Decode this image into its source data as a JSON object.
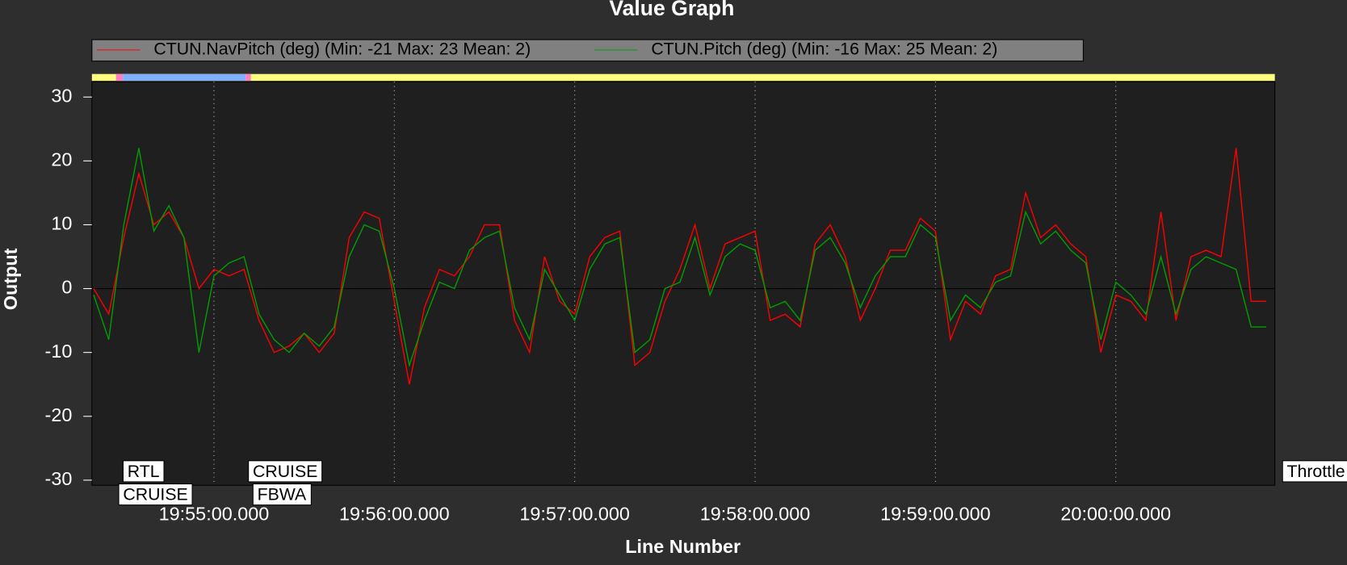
{
  "chart_data": {
    "type": "line",
    "title": "Value Graph",
    "x_label": "Line Number",
    "y_label": "Output",
    "x": [
      "19:54:20.000",
      "19:54:25.000",
      "19:54:30.000",
      "19:54:35.000",
      "19:54:40.000",
      "19:54:45.000",
      "19:54:50.000",
      "19:54:55.000",
      "19:55:00.000",
      "19:55:05.000",
      "19:55:10.000",
      "19:55:15.000",
      "19:55:20.000",
      "19:55:25.000",
      "19:55:30.000",
      "19:55:35.000",
      "19:55:40.000",
      "19:55:45.000",
      "19:55:50.000",
      "19:55:55.000",
      "19:56:00.000",
      "19:56:05.000",
      "19:56:10.000",
      "19:56:15.000",
      "19:56:20.000",
      "19:56:25.000",
      "19:56:30.000",
      "19:56:35.000",
      "19:56:40.000",
      "19:56:45.000",
      "19:56:50.000",
      "19:56:55.000",
      "19:57:00.000",
      "19:57:05.000",
      "19:57:10.000",
      "19:57:15.000",
      "19:57:20.000",
      "19:57:25.000",
      "19:57:30.000",
      "19:57:35.000",
      "19:57:40.000",
      "19:57:45.000",
      "19:57:50.000",
      "19:57:55.000",
      "19:58:00.000",
      "19:58:05.000",
      "19:58:10.000",
      "19:58:15.000",
      "19:58:20.000",
      "19:58:25.000",
      "19:58:30.000",
      "19:58:35.000",
      "19:58:40.000",
      "19:58:45.000",
      "19:58:50.000",
      "19:58:55.000",
      "19:59:00.000",
      "19:59:05.000",
      "19:59:10.000",
      "19:59:15.000",
      "19:59:20.000",
      "19:59:25.000",
      "19:59:30.000",
      "19:59:35.000",
      "19:59:40.000",
      "19:59:45.000",
      "19:59:50.000",
      "19:59:55.000",
      "20:00:00.000",
      "20:00:05.000",
      "20:00:10.000",
      "20:00:15.000",
      "20:00:20.000",
      "20:00:25.000",
      "20:00:30.000",
      "20:00:35.000",
      "20:00:40.000",
      "20:00:45.000",
      "20:00:50.000"
    ],
    "series": [
      {
        "name": "CTUN.NavPitch (deg) (Min: -21 Max: 23 Mean: 2)",
        "color": "#ff0000",
        "values": [
          0,
          -4,
          8,
          18,
          10,
          12,
          8,
          0,
          3,
          2,
          3,
          -5,
          -10,
          -9,
          -7,
          -10,
          -7,
          8,
          12,
          11,
          -2,
          -15,
          -3,
          3,
          2,
          5,
          10,
          10,
          -5,
          -10,
          5,
          -2,
          -4,
          5,
          8,
          9,
          -12,
          -10,
          -2,
          3,
          10,
          0,
          7,
          8,
          9,
          -5,
          -4,
          -6,
          7,
          10,
          5,
          -5,
          0,
          6,
          6,
          11,
          9,
          -8,
          -2,
          -4,
          2,
          3,
          15,
          8,
          10,
          7,
          5,
          -10,
          -1,
          -2,
          -5,
          12,
          -5,
          5,
          6,
          5,
          22,
          -2,
          -2
        ]
      },
      {
        "name": "CTUN.Pitch (deg) (Min: -16 Max: 25 Mean: 2)",
        "color": "#00a000",
        "values": [
          -1,
          -8,
          10,
          22,
          9,
          13,
          8,
          -10,
          2,
          4,
          5,
          -4,
          -8,
          -10,
          -7,
          -9,
          -6,
          5,
          10,
          9,
          0,
          -12,
          -5,
          1,
          0,
          6,
          8,
          9,
          -3,
          -8,
          3,
          -1,
          -5,
          3,
          7,
          8,
          -10,
          -8,
          0,
          1,
          8,
          -1,
          5,
          7,
          6,
          -3,
          -2,
          -5,
          6,
          8,
          4,
          -3,
          2,
          5,
          5,
          10,
          8,
          -5,
          -1,
          -3,
          1,
          2,
          12,
          7,
          9,
          6,
          4,
          -8,
          1,
          -1,
          -4,
          5,
          -4,
          3,
          5,
          4,
          3,
          -6,
          -6
        ]
      }
    ],
    "xlim": [
      "19:54:19.400",
      "20:00:52.900"
    ],
    "xticks": [
      "19:55:00.000",
      "19:56:00.000",
      "19:57:00.000",
      "19:58:00.000",
      "19:59:00.000",
      "20:00:00.000"
    ],
    "ylim": [
      -30.8,
      32.4
    ],
    "yticks": [
      -30,
      -20,
      -10,
      0,
      10,
      20,
      30
    ],
    "grid": true,
    "annotations": [
      "RTL",
      "CRUISE",
      "CRUISE",
      "FBWA",
      "Throttle"
    ]
  }
}
